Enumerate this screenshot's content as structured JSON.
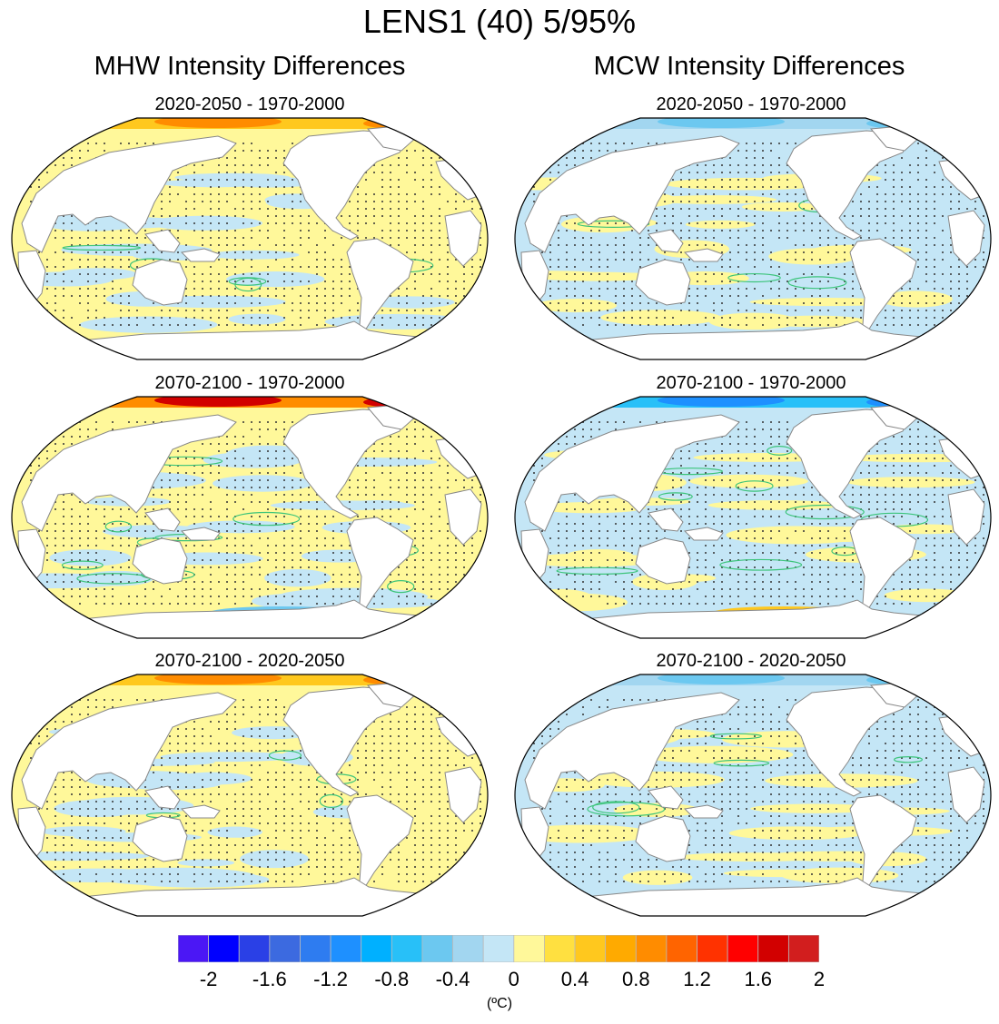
{
  "title": "LENS1 (40) 5/95%",
  "columns": [
    {
      "title": "MHW Intensity Differences"
    },
    {
      "title": "MCW Intensity Differences"
    }
  ],
  "panels": [
    {
      "id": "mhw-1",
      "column": 0,
      "row": 0,
      "title": "2020-2050 - 1970-2000",
      "dominant": "warm",
      "arctic_level": 0.8
    },
    {
      "id": "mcw-1",
      "column": 1,
      "row": 0,
      "title": "2020-2050 - 1970-2000",
      "dominant": "cool",
      "arctic_level": -0.6
    },
    {
      "id": "mhw-2",
      "column": 0,
      "row": 1,
      "title": "2070-2100 - 1970-2000",
      "dominant": "warm",
      "arctic_level": 1.6
    },
    {
      "id": "mcw-2",
      "column": 1,
      "row": 1,
      "title": "2070-2100 - 1970-2000",
      "dominant": "cool",
      "arctic_level": -1.2
    },
    {
      "id": "mhw-3",
      "column": 0,
      "row": 2,
      "title": "2070-2100 - 2020-2050",
      "dominant": "warm",
      "arctic_level": 0.8
    },
    {
      "id": "mcw-3",
      "column": 1,
      "row": 2,
      "title": "2070-2100 - 2020-2050",
      "dominant": "cool",
      "arctic_level": -0.6
    }
  ],
  "chart_data": {
    "type": "heatmap",
    "title": "LENS1 (40) 5/95%",
    "subplots": [
      {
        "column_title": "MHW Intensity Differences",
        "title": "2020-2050 - 1970-2000"
      },
      {
        "column_title": "MCW Intensity Differences",
        "title": "2020-2050 - 1970-2000"
      },
      {
        "column_title": "MHW Intensity Differences",
        "title": "2070-2100 - 1970-2000"
      },
      {
        "column_title": "MCW Intensity Differences",
        "title": "2070-2100 - 1970-2000"
      },
      {
        "column_title": "MHW Intensity Differences",
        "title": "2070-2100 - 2020-2050"
      },
      {
        "column_title": "MCW Intensity Differences",
        "title": "2070-2100 - 2020-2050"
      }
    ],
    "projection": "Robinson (Pacific-centered)",
    "stippling": "significance (5/95%)",
    "contour_color": "#3cc47a",
    "colorbar": {
      "units": "(ºC)",
      "tick_labels": [
        "-2",
        "-1.6",
        "-1.2",
        "-0.8",
        "-0.4",
        "0",
        "0.4",
        "0.8",
        "1.2",
        "1.6",
        "2"
      ],
      "range": [
        -2.2,
        2.2
      ],
      "step": 0.2,
      "colors": [
        "#4b17f5",
        "#0000ff",
        "#2a40e6",
        "#3c6ae0",
        "#2e7cf0",
        "#1e90ff",
        "#00b0ff",
        "#28c0f8",
        "#6cc8f0",
        "#a2d6f0",
        "#c4e6f6",
        "#fff89a",
        "#ffe040",
        "#ffc81e",
        "#ffaa00",
        "#ff8c00",
        "#ff6400",
        "#ff3200",
        "#ff0000",
        "#d20000",
        "#d21e1e",
        "#f07878"
      ]
    }
  }
}
